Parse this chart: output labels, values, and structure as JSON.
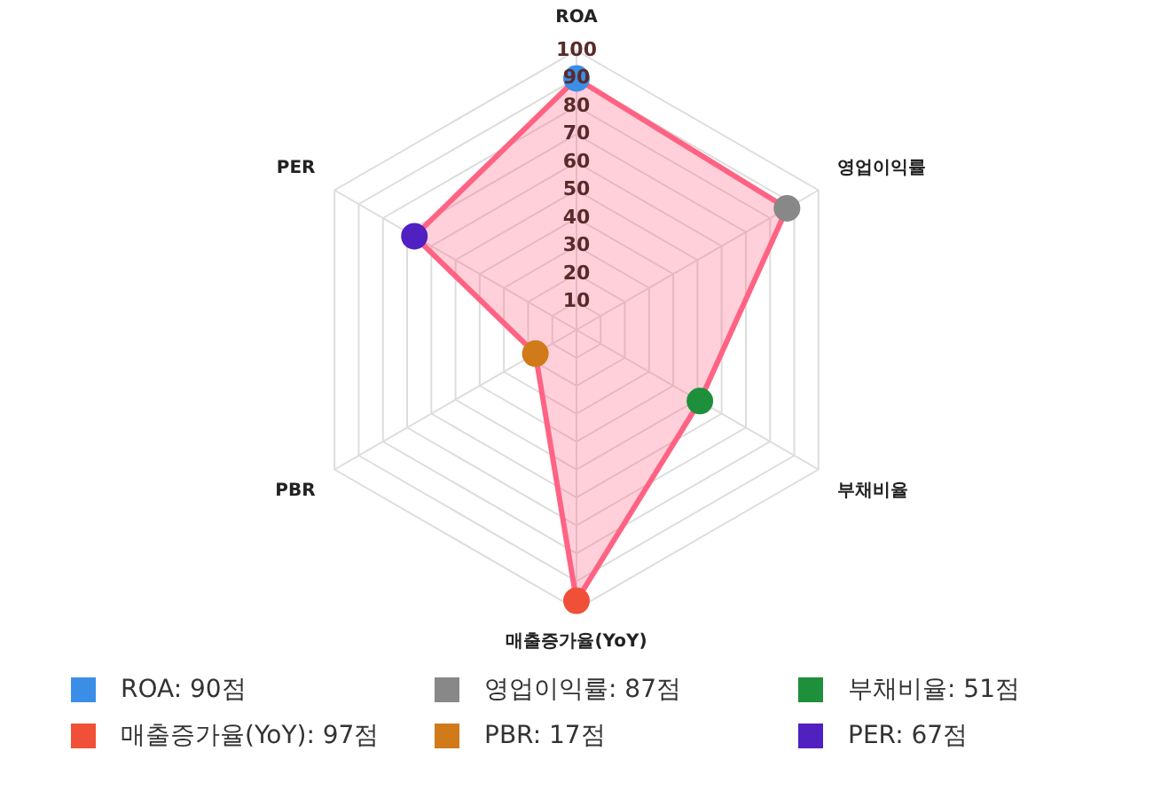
{
  "chart_data": {
    "type": "radar",
    "categories": [
      "ROA",
      "영업이익률",
      "부채비율",
      "매출증가율(YoY)",
      "PBR",
      "PER"
    ],
    "series": [
      {
        "color": "#ff6384",
        "colors": [
          "#3a8ee6",
          "#888888",
          "#1e8f3a",
          "#f05038",
          "#d07a1a",
          "#5020c0"
        ],
        "values": [
          90,
          87,
          51,
          97,
          17,
          67
        ]
      }
    ],
    "annotations": [
      "ROA: 90점",
      "영업이익률: 87점",
      "부채비율: 51점",
      "매출증가율(YoY): 97점",
      "PBR: 17점",
      "PER: 67점"
    ],
    "ylim": [
      0,
      100
    ],
    "yticks": [
      10,
      20,
      30,
      40,
      50,
      60,
      70,
      80,
      90,
      100
    ],
    "grid": true,
    "marker": "circle"
  }
}
